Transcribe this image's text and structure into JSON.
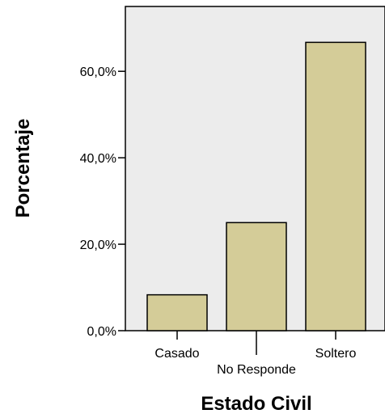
{
  "chart_data": {
    "type": "bar",
    "title": "",
    "xlabel": "Estado Civil",
    "ylabel": "Porcentaje",
    "categories": [
      "Casado",
      "No Responde",
      "Soltero"
    ],
    "values": [
      8.3,
      25.0,
      66.7
    ],
    "ylim": [
      0,
      75
    ],
    "yticks": [
      0,
      20,
      40,
      60
    ],
    "ytick_labels": [
      "0,0%",
      "20,0%",
      "40,0%",
      "60,0%"
    ],
    "grid": false,
    "legend": "none",
    "colors": {
      "bar_fill": "#d4cc98",
      "bar_stroke": "#000000",
      "plot_background": "#ececec"
    }
  }
}
